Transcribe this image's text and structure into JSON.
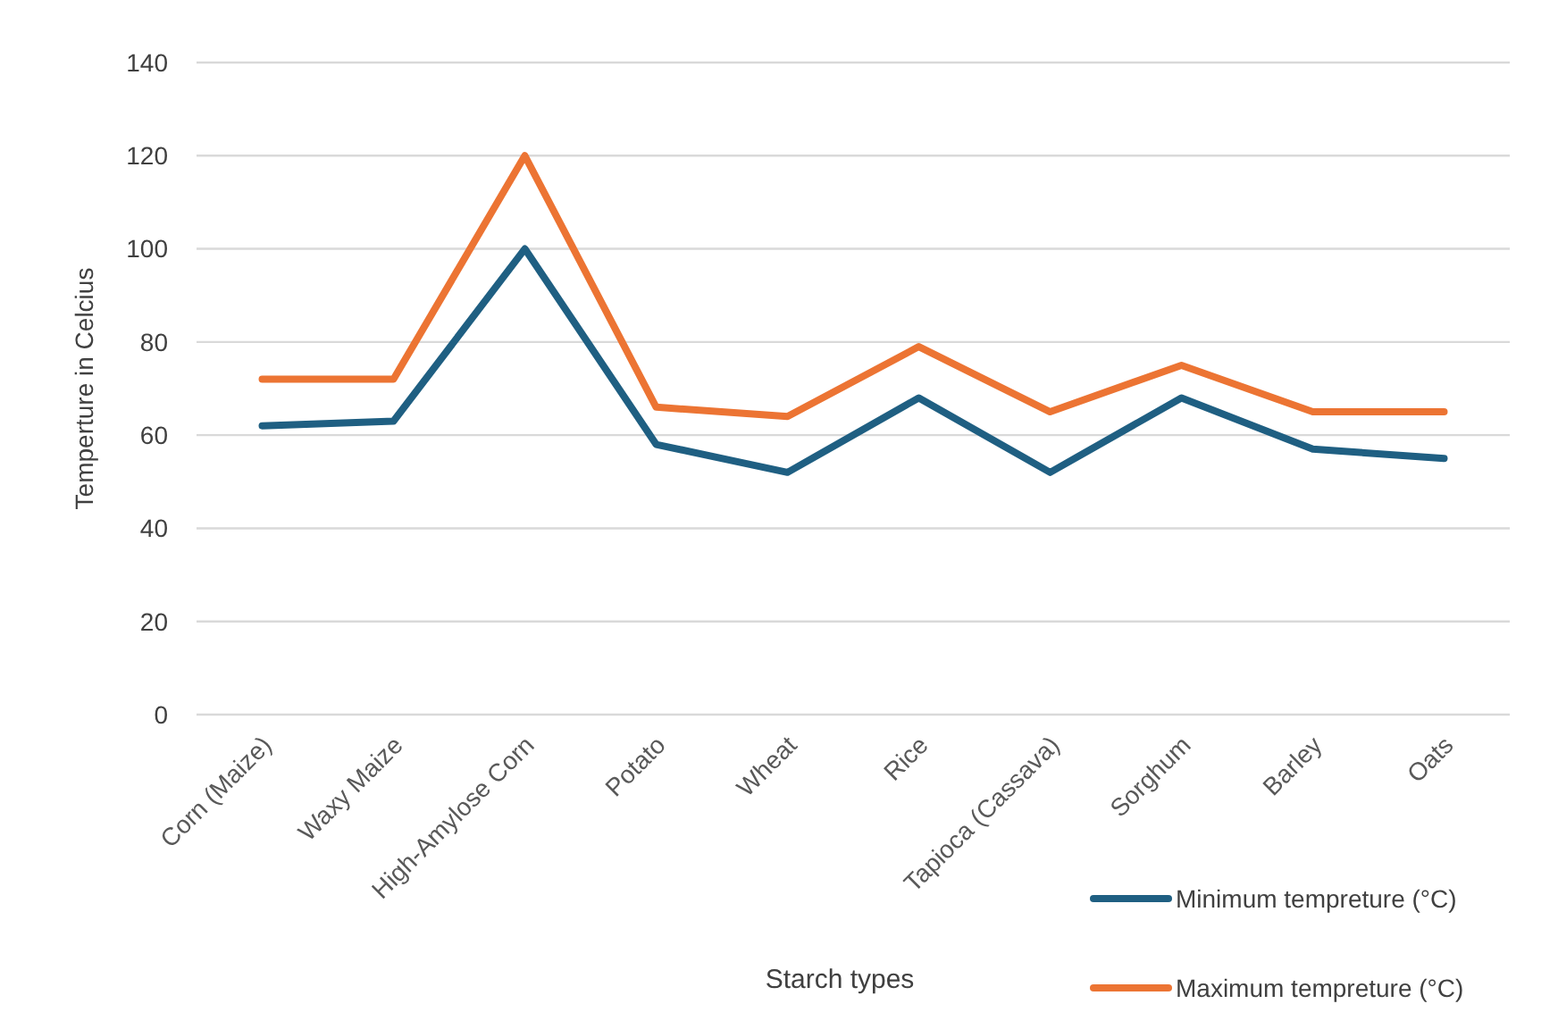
{
  "chart_data": {
    "type": "line",
    "xlabel": "Starch types",
    "ylabel": "Temperture in Celcius",
    "categories": [
      "Corn (Maize)",
      "Waxy Maize",
      "High-Amylose Corn",
      "Potato",
      "Wheat",
      "Rice",
      "Tapioca (Cassava)",
      "Sorghum",
      "Barley",
      "Oats"
    ],
    "series": [
      {
        "name": "Minimum tempreture (°C)",
        "color": "#1f5f82",
        "values": [
          62,
          63,
          100,
          58,
          52,
          68,
          52,
          68,
          57,
          55
        ]
      },
      {
        "name": "Maximum tempreture (°C)",
        "color": "#ec7433",
        "values": [
          72,
          72,
          120,
          66,
          64,
          79,
          65,
          75,
          65,
          65
        ]
      }
    ],
    "ylim": [
      0,
      140
    ],
    "yticks": [
      0,
      20,
      40,
      60,
      80,
      100,
      120,
      140
    ],
    "grid": "y",
    "legend": "bottom right",
    "marker": "none",
    "line_style": "solid"
  }
}
